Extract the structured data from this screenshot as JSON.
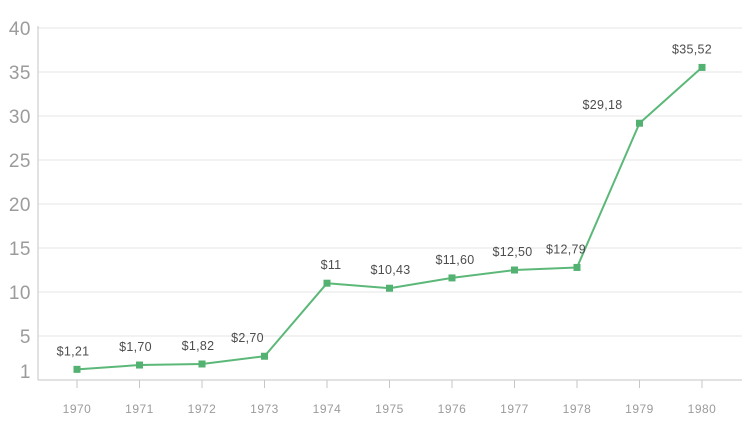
{
  "chart_data": {
    "type": "line",
    "title": "",
    "xlabel": "",
    "ylabel": "",
    "x": [
      "1970",
      "1971",
      "1972",
      "1973",
      "1974",
      "1975",
      "1976",
      "1977",
      "1978",
      "1979",
      "1980"
    ],
    "values": [
      1.21,
      1.7,
      1.82,
      2.7,
      11,
      10.43,
      11.6,
      12.5,
      12.79,
      29.18,
      35.52
    ],
    "point_labels": [
      "$1,21",
      "$1,70",
      "$1,82",
      "$2,70",
      "$11",
      "$10,43",
      "$11,60",
      "$12,50",
      "$12,79",
      "$29,18",
      "$35,52"
    ],
    "label_dx": [
      -4,
      -4,
      -4,
      -17,
      4,
      1,
      3,
      -2,
      -11,
      -37,
      -10
    ],
    "ylim": [
      0,
      40
    ],
    "y_ticks": {
      "values": [
        40,
        35,
        30,
        25,
        20,
        15,
        10,
        5,
        1
      ],
      "labels": [
        "40",
        "35",
        "30",
        "25",
        "20",
        "15",
        "10",
        "5",
        "1"
      ]
    },
    "gridline_values": [
      5,
      10,
      15,
      20,
      25,
      30,
      35,
      40
    ],
    "grid": true,
    "legend": false,
    "marker": "square",
    "colors": {
      "line": "#5cb878",
      "marker": "#53b271",
      "grid": "#e4e4e4",
      "axis": "#c6c6c6",
      "tick_text": "#9b9b9b",
      "label_text": "#4d4d4d"
    }
  }
}
